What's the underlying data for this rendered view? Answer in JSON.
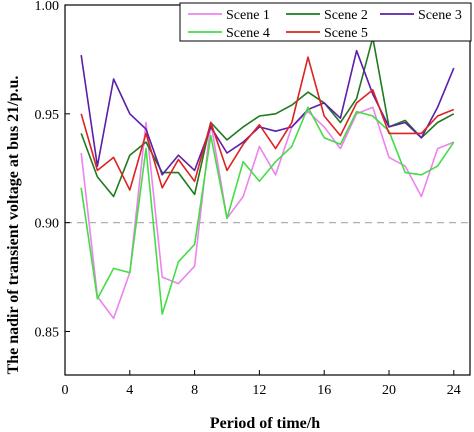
{
  "chart_data": {
    "type": "line",
    "xlabel": "Period of time/h",
    "ylabel": "The nadir of transient voltage at bus 21/p.u.",
    "xlim": [
      0,
      25
    ],
    "ylim": [
      0.83,
      1.0
    ],
    "xticks": [
      0,
      4,
      8,
      12,
      16,
      20,
      24
    ],
    "yticks": [
      0.85,
      0.9,
      0.95,
      1.0
    ],
    "ytick_labels": [
      "0.85",
      "0.90",
      "0.95",
      "1.00"
    ],
    "reference_line": {
      "y": 0.9,
      "style": "dashed",
      "color": "#b0b0b0"
    },
    "legend_position": "top-right",
    "grid": false,
    "x": [
      1,
      2,
      3,
      4,
      5,
      6,
      7,
      8,
      9,
      10,
      11,
      12,
      13,
      14,
      15,
      16,
      17,
      18,
      19,
      20,
      21,
      22,
      23,
      24
    ],
    "series": [
      {
        "name": "Scene 1",
        "color": "#ee82ee",
        "values": [
          0.932,
          0.866,
          0.856,
          0.877,
          0.946,
          0.875,
          0.872,
          0.88,
          0.946,
          0.902,
          0.912,
          0.935,
          0.922,
          0.944,
          0.951,
          0.944,
          0.934,
          0.95,
          0.953,
          0.93,
          0.926,
          0.912,
          0.934,
          0.937
        ]
      },
      {
        "name": "Scene 2",
        "color": "#1f7a1f",
        "values": [
          0.941,
          0.921,
          0.912,
          0.931,
          0.937,
          0.923,
          0.923,
          0.913,
          0.946,
          0.938,
          0.944,
          0.949,
          0.95,
          0.954,
          0.96,
          0.955,
          0.946,
          0.957,
          0.985,
          0.944,
          0.947,
          0.939,
          0.946,
          0.95
        ]
      },
      {
        "name": "Scene 3",
        "color": "#5b1fa8",
        "values": [
          0.977,
          0.926,
          0.966,
          0.95,
          0.943,
          0.922,
          0.931,
          0.924,
          0.944,
          0.932,
          0.937,
          0.944,
          0.942,
          0.944,
          0.952,
          0.955,
          0.948,
          0.979,
          0.959,
          0.944,
          0.946,
          0.939,
          0.953,
          0.971
        ]
      },
      {
        "name": "Scene 4",
        "color": "#44dd44",
        "values": [
          0.916,
          0.865,
          0.879,
          0.877,
          0.934,
          0.858,
          0.882,
          0.89,
          0.94,
          0.902,
          0.928,
          0.919,
          0.928,
          0.935,
          0.953,
          0.939,
          0.936,
          0.951,
          0.949,
          0.942,
          0.923,
          0.922,
          0.926,
          0.937
        ]
      },
      {
        "name": "Scene 5",
        "color": "#dd2222",
        "values": [
          0.95,
          0.924,
          0.93,
          0.915,
          0.941,
          0.916,
          0.929,
          0.919,
          0.946,
          0.924,
          0.936,
          0.945,
          0.934,
          0.946,
          0.976,
          0.949,
          0.94,
          0.955,
          0.961,
          0.941,
          0.941,
          0.941,
          0.949,
          0.952
        ]
      }
    ]
  }
}
